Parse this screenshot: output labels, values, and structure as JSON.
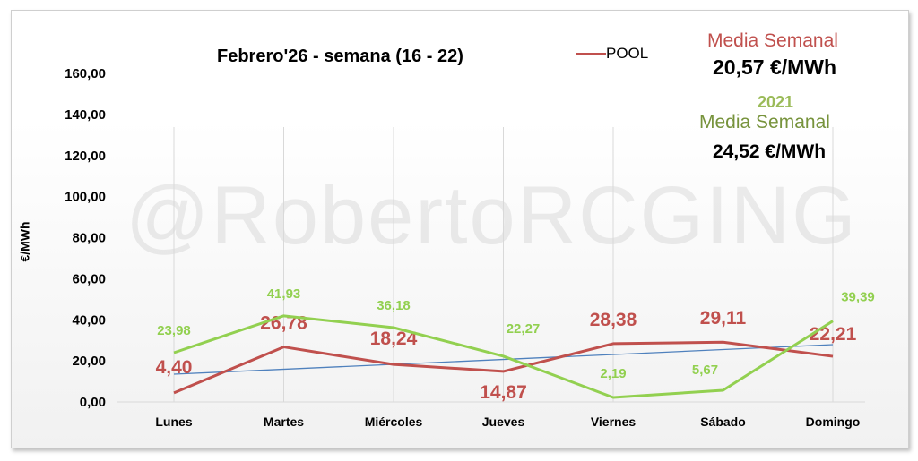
{
  "chart_data": {
    "type": "line",
    "title": "Febrero'26 - semana (16 - 22)",
    "ylabel": "€/MWh",
    "xlabel": "",
    "ylim": [
      0,
      160
    ],
    "yticks": [
      "0,00",
      "20,00",
      "40,00",
      "60,00",
      "80,00",
      "100,00",
      "120,00",
      "140,00",
      "160,00"
    ],
    "categories": [
      "Lunes",
      "Martes",
      "Miércoles",
      "Jueves",
      "Viernes",
      "Sábado",
      "Domingo"
    ],
    "grid": "vertical",
    "legend": "top",
    "series": [
      {
        "name": "POOL",
        "color": "#c0504d",
        "values": [
          4.4,
          26.78,
          18.24,
          14.87,
          28.38,
          29.11,
          22.21
        ],
        "labels": [
          "4,40",
          "26,78",
          "18,24",
          "14,87",
          "28,38",
          "29,11",
          "22,21"
        ]
      },
      {
        "color": "#92d050",
        "values": [
          23.98,
          41.93,
          36.18,
          22.27,
          2.19,
          5.67,
          39.39
        ],
        "labels": [
          "23,98",
          "41,93",
          "36,18",
          "22,27",
          "2,19",
          "5,67",
          "39,39"
        ]
      }
    ],
    "trendline": {
      "color": "#4f81bd",
      "start": 13.5,
      "end": 27.9
    }
  },
  "summary": {
    "pool_label": "Media Semanal",
    "pool_value": "20,57 €/MWh",
    "year": "2021",
    "year_label": "Media Semanal",
    "year_value": "24,52 €/MWh"
  },
  "watermark": "@RobertoRCGING"
}
